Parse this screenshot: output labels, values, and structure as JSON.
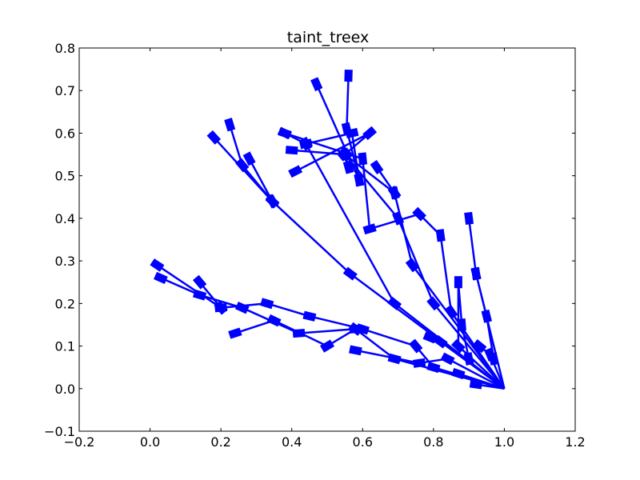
{
  "chart_data": {
    "type": "line",
    "title": "taint_treex",
    "xlabel": "",
    "ylabel": "",
    "xlim": [
      -0.2,
      1.2
    ],
    "ylim": [
      -0.1,
      0.8
    ],
    "xticks": [
      -0.2,
      0.0,
      0.2,
      0.4,
      0.6,
      0.8,
      1.0,
      1.2
    ],
    "yticks": [
      -0.1,
      0.0,
      0.1,
      0.2,
      0.3,
      0.4,
      0.5,
      0.6,
      0.7,
      0.8
    ],
    "xtick_labels": [
      "−0.2",
      "0.0",
      "0.2",
      "0.4",
      "0.6",
      "0.8",
      "1.0",
      "1.2"
    ],
    "ytick_labels": [
      "−0.1",
      "0.0",
      "0.1",
      "0.2",
      "0.3",
      "0.4",
      "0.5",
      "0.6",
      "0.7",
      "0.8"
    ],
    "grid": false,
    "legend": false,
    "line_color": "#0000ff",
    "marker": "thin-diamond",
    "root": [
      1.0,
      0.0
    ],
    "branches": [
      [
        [
          1.0,
          0.0
        ],
        [
          0.565,
          0.27
        ],
        [
          0.345,
          0.44
        ],
        [
          0.18,
          0.59
        ]
      ],
      [
        [
          0.345,
          0.44
        ],
        [
          0.26,
          0.525
        ],
        [
          0.225,
          0.62
        ]
      ],
      [
        [
          0.345,
          0.44
        ],
        [
          0.28,
          0.54
        ]
      ],
      [
        [
          1.0,
          0.0
        ],
        [
          0.69,
          0.2
        ],
        [
          0.44,
          0.575
        ],
        [
          0.38,
          0.6
        ]
      ],
      [
        [
          0.44,
          0.575
        ],
        [
          0.57,
          0.6
        ],
        [
          0.59,
          0.49
        ],
        [
          0.47,
          0.715
        ]
      ],
      [
        [
          0.59,
          0.49
        ],
        [
          0.555,
          0.61
        ],
        [
          0.56,
          0.735
        ]
      ],
      [
        [
          1.0,
          0.0
        ],
        [
          0.8,
          0.2
        ],
        [
          0.7,
          0.4
        ],
        [
          0.55,
          0.55
        ],
        [
          0.4,
          0.56
        ]
      ],
      [
        [
          0.55,
          0.55
        ],
        [
          0.62,
          0.6
        ],
        [
          0.41,
          0.51
        ]
      ],
      [
        [
          1.0,
          0.0
        ],
        [
          0.74,
          0.29
        ],
        [
          0.69,
          0.46
        ],
        [
          0.55,
          0.55
        ],
        [
          0.56,
          0.52
        ]
      ],
      [
        [
          0.69,
          0.46
        ],
        [
          0.64,
          0.52
        ]
      ],
      [
        [
          1.0,
          0.0
        ],
        [
          0.85,
          0.18
        ],
        [
          0.82,
          0.36
        ],
        [
          0.76,
          0.41
        ],
        [
          0.62,
          0.375
        ],
        [
          0.6,
          0.54
        ],
        [
          0.38,
          0.6
        ]
      ],
      [
        [
          1.0,
          0.0
        ],
        [
          0.87,
          0.1
        ],
        [
          0.87,
          0.25
        ],
        [
          0.88,
          0.15
        ],
        [
          0.9,
          0.07
        ]
      ],
      [
        [
          1.0,
          0.0
        ],
        [
          0.92,
          0.27
        ],
        [
          0.95,
          0.17
        ],
        [
          0.97,
          0.07
        ]
      ],
      [
        [
          0.92,
          0.27
        ],
        [
          0.9,
          0.4
        ]
      ],
      [
        [
          1.0,
          0.0
        ],
        [
          0.8,
          0.05
        ],
        [
          0.75,
          0.1
        ],
        [
          0.6,
          0.14
        ],
        [
          0.45,
          0.17
        ],
        [
          0.33,
          0.2
        ],
        [
          0.2,
          0.19
        ],
        [
          0.02,
          0.29
        ]
      ],
      [
        [
          0.2,
          0.19
        ],
        [
          0.14,
          0.25
        ]
      ],
      [
        [
          1.0,
          0.0
        ],
        [
          0.69,
          0.07
        ],
        [
          0.58,
          0.14
        ],
        [
          0.5,
          0.1
        ],
        [
          0.35,
          0.16
        ],
        [
          0.24,
          0.13
        ]
      ],
      [
        [
          0.58,
          0.14
        ],
        [
          0.42,
          0.13
        ],
        [
          0.26,
          0.19
        ],
        [
          0.14,
          0.22
        ],
        [
          0.03,
          0.26
        ]
      ],
      [
        [
          1.0,
          0.0
        ],
        [
          0.96,
          0.08
        ],
        [
          0.93,
          0.1
        ]
      ],
      [
        [
          1.0,
          0.0
        ],
        [
          0.92,
          0.01
        ]
      ],
      [
        [
          1.0,
          0.0
        ],
        [
          0.84,
          0.07
        ],
        [
          0.76,
          0.06
        ],
        [
          0.58,
          0.09
        ]
      ],
      [
        [
          1.0,
          0.0
        ],
        [
          0.87,
          0.035
        ]
      ],
      [
        [
          1.0,
          0.0
        ],
        [
          0.82,
          0.11
        ],
        [
          0.79,
          0.12
        ]
      ]
    ]
  }
}
